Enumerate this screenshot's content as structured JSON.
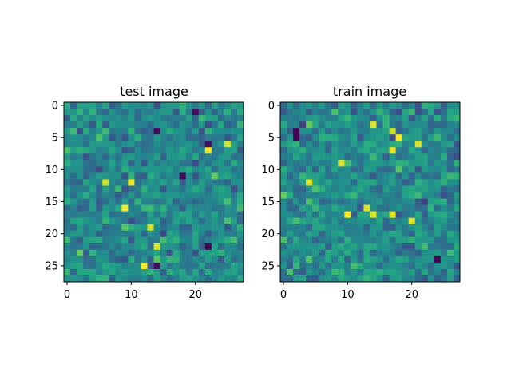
{
  "chart_data": [
    {
      "type": "heatmap",
      "title": "test image",
      "rows": 28,
      "cols": 28,
      "colormap": "viridis",
      "seed": 7,
      "vmin": 0,
      "vmax": 1,
      "x_ticks": [
        0,
        10,
        20
      ],
      "y_ticks": [
        0,
        5,
        10,
        15,
        20,
        25
      ],
      "xlim": [
        -0.5,
        27.5
      ],
      "ylim": [
        27.5,
        -0.5
      ],
      "bright_cells": [
        [
          12,
          6
        ],
        [
          12,
          10
        ],
        [
          7,
          22
        ],
        [
          6,
          25
        ],
        [
          16,
          9
        ],
        [
          19,
          13
        ],
        [
          22,
          14
        ],
        [
          25,
          12
        ]
      ],
      "dark_cells": [
        [
          4,
          14
        ],
        [
          11,
          18
        ],
        [
          25,
          14
        ],
        [
          22,
          22
        ],
        [
          6,
          22
        ],
        [
          1,
          20
        ]
      ]
    },
    {
      "type": "heatmap",
      "title": "train image",
      "rows": 28,
      "cols": 28,
      "colormap": "viridis",
      "seed": 21,
      "vmin": 0,
      "vmax": 1,
      "x_ticks": [
        0,
        10,
        20
      ],
      "y_ticks": [
        0,
        5,
        10,
        15,
        20,
        25
      ],
      "xlim": [
        -0.5,
        27.5
      ],
      "ylim": [
        27.5,
        -0.5
      ],
      "bright_cells": [
        [
          4,
          17
        ],
        [
          5,
          18
        ],
        [
          6,
          21
        ],
        [
          9,
          9
        ],
        [
          17,
          10
        ],
        [
          17,
          14
        ],
        [
          17,
          17
        ],
        [
          18,
          20
        ],
        [
          3,
          14
        ],
        [
          7,
          17
        ],
        [
          16,
          13
        ],
        [
          12,
          4
        ]
      ],
      "dark_cells": [
        [
          4,
          2
        ],
        [
          5,
          2
        ],
        [
          24,
          24
        ]
      ]
    }
  ]
}
